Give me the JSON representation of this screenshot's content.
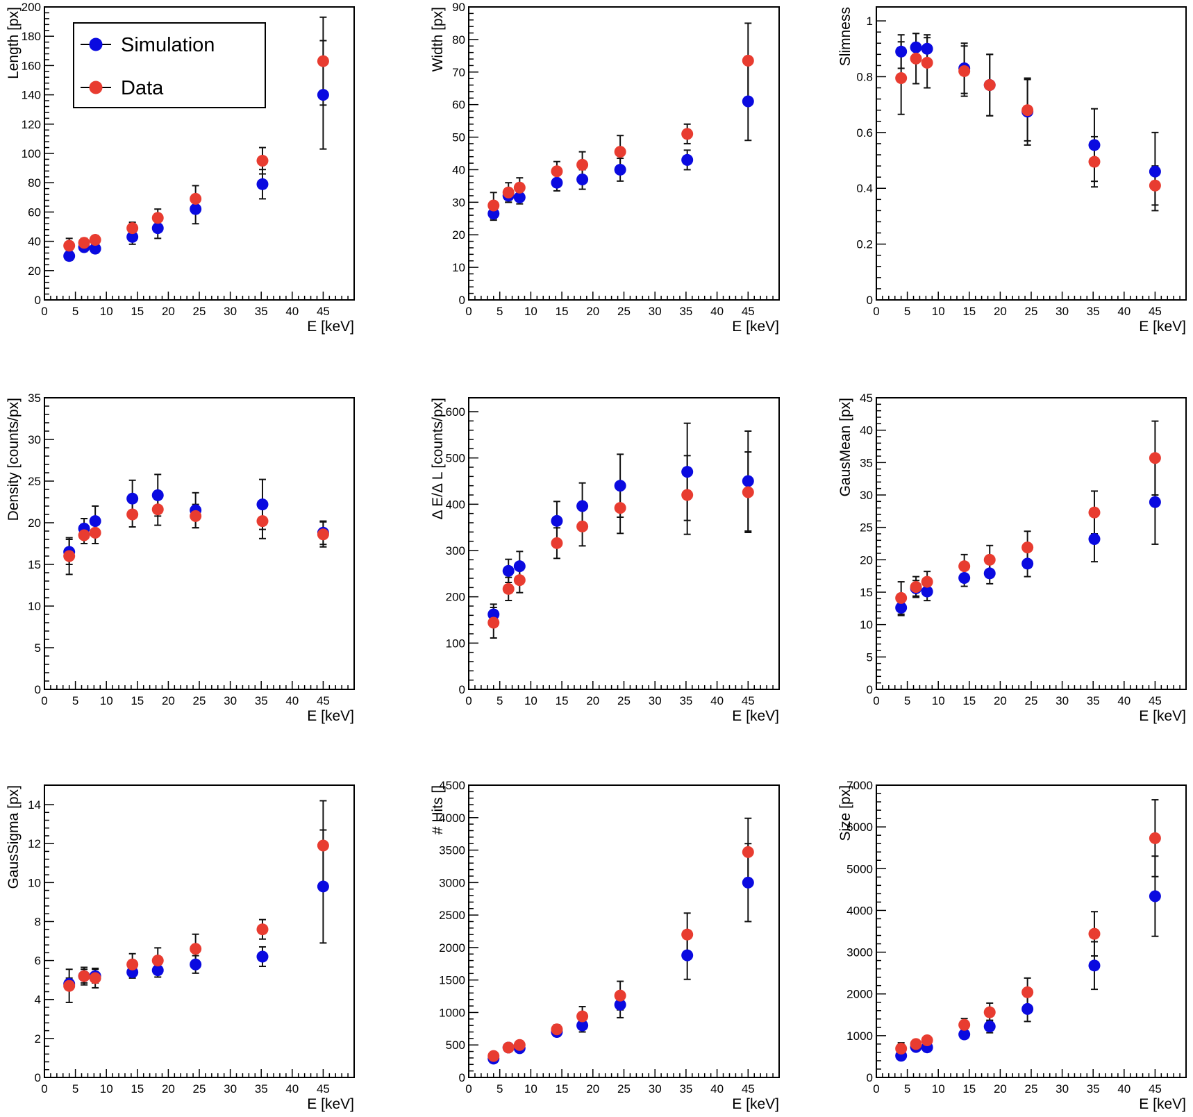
{
  "colors": {
    "sim": "#0a0ae0",
    "data": "#e83c30"
  },
  "legend": {
    "entries": [
      "Simulation",
      "Data"
    ],
    "placement": "top-left of first panel"
  },
  "chart_data": [
    {
      "type": "scatter",
      "title": "",
      "xlabel": "E [keV]",
      "ylabel": "Length [px]",
      "xlim": [
        0,
        50
      ],
      "ylim": [
        0,
        200
      ],
      "xticks": [
        0,
        5,
        10,
        15,
        20,
        25,
        30,
        35,
        40,
        45
      ],
      "yticks": [
        0,
        20,
        40,
        60,
        80,
        100,
        120,
        140,
        160,
        180,
        200
      ],
      "x": [
        4,
        6.4,
        8.2,
        14.2,
        18.3,
        24.4,
        35.2,
        45
      ],
      "series": [
        {
          "name": "Simulation",
          "values": [
            30,
            36,
            35,
            43,
            49,
            62,
            79,
            140
          ],
          "err": [
            3,
            3,
            3,
            5,
            7,
            10,
            10,
            37
          ]
        },
        {
          "name": "Data",
          "values": [
            37,
            39,
            41,
            49,
            56,
            69,
            95,
            163
          ],
          "err": [
            5,
            3,
            3,
            4,
            6,
            9,
            9,
            30
          ]
        }
      ]
    },
    {
      "type": "scatter",
      "title": "",
      "xlabel": "E [keV]",
      "ylabel": "Width [px]",
      "xlim": [
        0,
        50
      ],
      "ylim": [
        0,
        90
      ],
      "xticks": [
        0,
        5,
        10,
        15,
        20,
        25,
        30,
        35,
        40,
        45
      ],
      "yticks": [
        0,
        10,
        20,
        30,
        40,
        50,
        60,
        70,
        80,
        90
      ],
      "x": [
        4,
        6.4,
        8.2,
        14.2,
        18.3,
        24.4,
        35.2,
        45
      ],
      "series": [
        {
          "name": "Simulation",
          "values": [
            26.5,
            32,
            31.5,
            36,
            37,
            40,
            43,
            61
          ],
          "err": [
            2,
            2,
            2,
            2.5,
            3,
            3.5,
            3,
            12
          ]
        },
        {
          "name": "Data",
          "values": [
            29,
            33,
            34.5,
            39.5,
            41.5,
            45.5,
            51,
            73.5
          ],
          "err": [
            4,
            3,
            3,
            3,
            4,
            5,
            3,
            11.5
          ]
        }
      ]
    },
    {
      "type": "scatter",
      "title": "",
      "xlabel": "E [keV]",
      "ylabel": "Slimness",
      "xlim": [
        0,
        50
      ],
      "ylim": [
        0,
        1.05
      ],
      "xticks": [
        0,
        5,
        10,
        15,
        20,
        25,
        30,
        35,
        40,
        45
      ],
      "yticks": [
        0,
        0.2,
        0.4,
        0.6,
        0.8,
        1
      ],
      "yticklabels": [
        "0",
        "0.2",
        "0.4",
        "0.6",
        "0.8",
        "1"
      ],
      "x": [
        4,
        6.4,
        8.2,
        14.2,
        18.3,
        24.4,
        35.2,
        45
      ],
      "series": [
        {
          "name": "Simulation",
          "values": [
            0.89,
            0.905,
            0.9,
            0.83,
            0.77,
            0.675,
            0.555,
            0.46
          ],
          "err": [
            0.06,
            0.05,
            0.05,
            0.09,
            0.11,
            0.12,
            0.13,
            0.14
          ]
        },
        {
          "name": "Data",
          "values": [
            0.795,
            0.865,
            0.85,
            0.82,
            0.77,
            0.68,
            0.495,
            0.41
          ],
          "err": [
            0.13,
            0.09,
            0.09,
            0.09,
            0.11,
            0.11,
            0.09,
            0.07
          ]
        }
      ]
    },
    {
      "type": "scatter",
      "title": "",
      "xlabel": "E [keV]",
      "ylabel": "Density [counts/px]",
      "xlim": [
        0,
        50
      ],
      "ylim": [
        0,
        35
      ],
      "xticks": [
        0,
        5,
        10,
        15,
        20,
        25,
        30,
        35,
        40,
        45
      ],
      "yticks": [
        0,
        5,
        10,
        15,
        20,
        25,
        30,
        35
      ],
      "x": [
        4,
        6.4,
        8.2,
        14.2,
        18.3,
        24.4,
        35.2,
        45
      ],
      "series": [
        {
          "name": "Simulation",
          "values": [
            16.5,
            19.3,
            20.2,
            22.9,
            23.3,
            21.5,
            22.2,
            18.8
          ],
          "err": [
            1.5,
            1.2,
            1.8,
            2.2,
            2.5,
            2.1,
            3,
            1.4
          ]
        },
        {
          "name": "Data",
          "values": [
            16,
            18.5,
            18.8,
            21,
            21.6,
            20.8,
            20.2,
            18.6
          ],
          "err": [
            2.2,
            1,
            1.3,
            1.5,
            1.9,
            1.4,
            2.1,
            1.5
          ]
        }
      ]
    },
    {
      "type": "scatter",
      "title": "",
      "xlabel": "E [keV]",
      "ylabel": "Δ E/Δ L [counts/px]",
      "xlim": [
        0,
        50
      ],
      "ylim": [
        0,
        630
      ],
      "xticks": [
        0,
        5,
        10,
        15,
        20,
        25,
        30,
        35,
        40,
        45
      ],
      "yticks": [
        0,
        100,
        200,
        300,
        400,
        500,
        600
      ],
      "x": [
        4,
        6.4,
        8.2,
        14.2,
        18.3,
        24.4,
        35.2,
        45
      ],
      "series": [
        {
          "name": "Simulation",
          "values": [
            162,
            256,
            266,
            364,
            396,
            440,
            470,
            450
          ],
          "err": [
            22,
            25,
            32,
            42,
            50,
            68,
            105,
            108
          ]
        },
        {
          "name": "Data",
          "values": [
            144,
            217,
            236,
            316,
            352,
            392,
            420,
            426
          ],
          "err": [
            33,
            25,
            27,
            33,
            42,
            55,
            85,
            87
          ]
        }
      ]
    },
    {
      "type": "scatter",
      "title": "",
      "xlabel": "E [keV]",
      "ylabel": "GausMean [px]",
      "xlim": [
        0,
        50
      ],
      "ylim": [
        0,
        45
      ],
      "xticks": [
        0,
        5,
        10,
        15,
        20,
        25,
        30,
        35,
        40,
        45
      ],
      "yticks": [
        0,
        5,
        10,
        15,
        20,
        25,
        30,
        35,
        40,
        45
      ],
      "x": [
        4,
        6.4,
        8.2,
        14.2,
        18.3,
        24.4,
        35.2,
        45
      ],
      "series": [
        {
          "name": "Simulation",
          "values": [
            12.6,
            15.6,
            15.1,
            17.2,
            17.9,
            19.4,
            23.2,
            28.9
          ],
          "err": [
            1.2,
            1.2,
            1.4,
            1.3,
            1.6,
            2,
            3.5,
            6.5
          ]
        },
        {
          "name": "Data",
          "values": [
            14.1,
            15.8,
            16.6,
            19,
            20,
            21.9,
            27.3,
            35.7
          ],
          "err": [
            2.5,
            1.6,
            1.6,
            1.8,
            2.2,
            2.5,
            3.3,
            5.7
          ]
        }
      ]
    },
    {
      "type": "scatter",
      "title": "",
      "xlabel": "E [keV]",
      "ylabel": "GausSigma [px]",
      "xlim": [
        0,
        50
      ],
      "ylim": [
        0,
        15
      ],
      "xticks": [
        0,
        5,
        10,
        15,
        20,
        25,
        30,
        35,
        40,
        45
      ],
      "yticks": [
        0,
        2,
        4,
        6,
        8,
        10,
        12,
        14
      ],
      "x": [
        4,
        6.4,
        8.2,
        14.2,
        18.3,
        24.4,
        35.2,
        45
      ],
      "series": [
        {
          "name": "Simulation",
          "values": [
            4.8,
            5.2,
            5.2,
            5.4,
            5.5,
            5.8,
            6.2,
            9.8
          ],
          "err": [
            0.3,
            0.35,
            0.35,
            0.3,
            0.35,
            0.45,
            0.5,
            2.9
          ]
        },
        {
          "name": "Data",
          "values": [
            4.7,
            5.2,
            5.1,
            5.8,
            6,
            6.6,
            7.6,
            11.9
          ],
          "err": [
            0.85,
            0.45,
            0.5,
            0.55,
            0.65,
            0.75,
            0.5,
            2.3
          ]
        }
      ]
    },
    {
      "type": "scatter",
      "title": "",
      "xlabel": "E [keV]",
      "ylabel": "# Hits []",
      "xlim": [
        0,
        50
      ],
      "ylim": [
        0,
        4500
      ],
      "xticks": [
        0,
        5,
        10,
        15,
        20,
        25,
        30,
        35,
        40,
        45
      ],
      "yticks": [
        0,
        500,
        1000,
        1500,
        2000,
        2500,
        3000,
        3500,
        4000,
        4500
      ],
      "x": [
        4,
        6.4,
        8.2,
        14.2,
        18.3,
        24.4,
        35.2,
        45
      ],
      "series": [
        {
          "name": "Simulation",
          "values": [
            290,
            460,
            450,
            700,
            800,
            1120,
            1880,
            3000
          ],
          "err": [
            40,
            50,
            50,
            70,
            100,
            200,
            370,
            600
          ]
        },
        {
          "name": "Data",
          "values": [
            330,
            460,
            500,
            740,
            940,
            1260,
            2200,
            3470
          ],
          "err": [
            50,
            40,
            45,
            70,
            150,
            220,
            330,
            520
          ]
        }
      ]
    },
    {
      "type": "scatter",
      "title": "",
      "xlabel": "E [keV]",
      "ylabel": "Size [px]",
      "xlim": [
        0,
        50
      ],
      "ylim": [
        0,
        7000
      ],
      "xticks": [
        0,
        5,
        10,
        15,
        20,
        25,
        30,
        35,
        40,
        45
      ],
      "yticks": [
        0,
        1000,
        2000,
        3000,
        4000,
        5000,
        6000,
        7000
      ],
      "x": [
        4,
        6.4,
        8.2,
        14.2,
        18.3,
        24.4,
        35.2,
        45
      ],
      "series": [
        {
          "name": "Simulation",
          "values": [
            520,
            730,
            720,
            1030,
            1220,
            1640,
            2680,
            4340
          ],
          "err": [
            60,
            70,
            70,
            100,
            150,
            300,
            570,
            960
          ]
        },
        {
          "name": "Data",
          "values": [
            690,
            800,
            890,
            1260,
            1560,
            2040,
            3440,
            5730
          ],
          "err": [
            140,
            90,
            90,
            150,
            220,
            340,
            530,
            920
          ]
        }
      ]
    }
  ]
}
